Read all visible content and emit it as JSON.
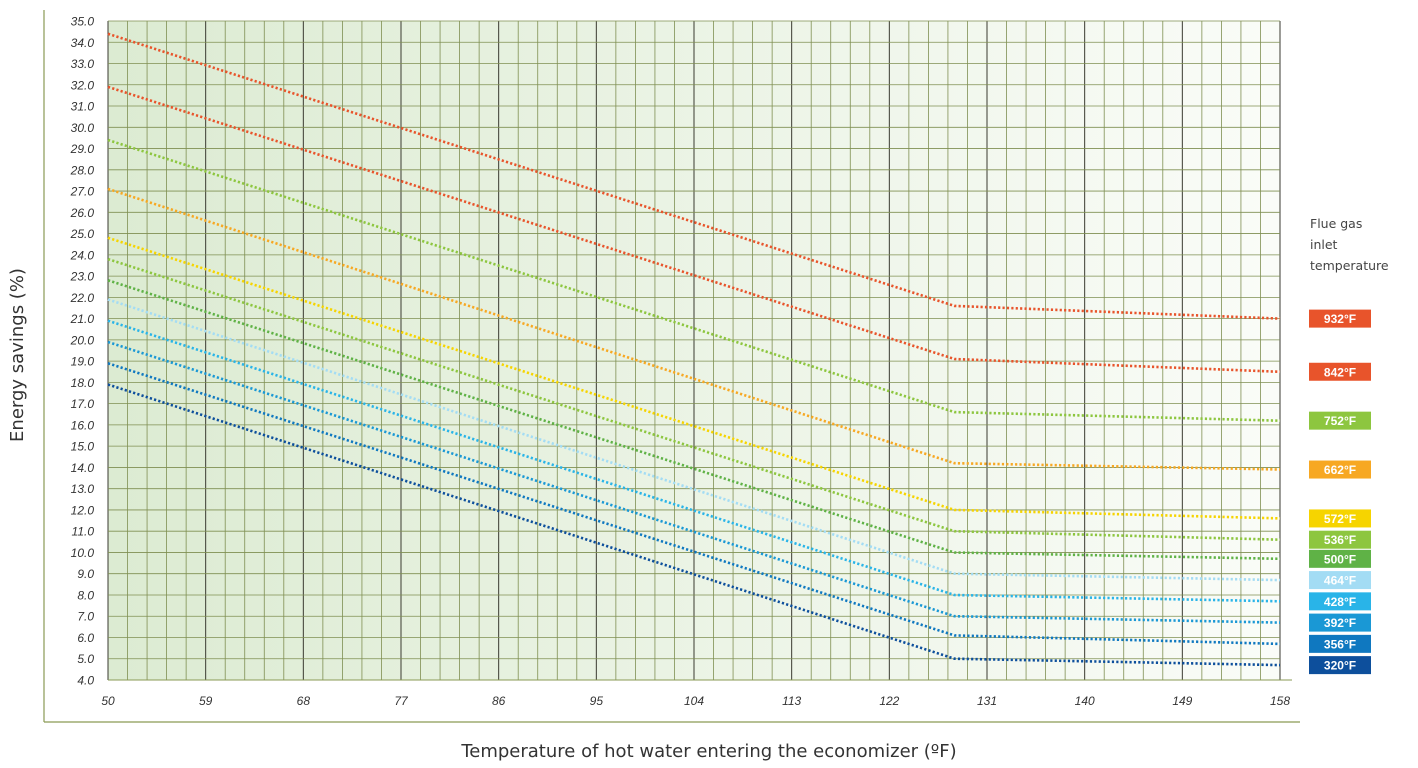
{
  "chart_data": {
    "type": "line",
    "xlabel": "Temperature of hot water entering the economizer (ºF)",
    "ylabel": "Energy savings (%)",
    "xlim": [
      50,
      158
    ],
    "ylim": [
      4.0,
      35.0
    ],
    "xticks": [
      "50",
      "59",
      "68",
      "77",
      "86",
      "95",
      "104",
      "113",
      "122",
      "131",
      "140",
      "149",
      "158"
    ],
    "yticks": [
      "35.0",
      "34.0",
      "33.0",
      "32.0",
      "31.0",
      "30.0",
      "29.0",
      "28.0",
      "27.0",
      "26.0",
      "25.0",
      "24.0",
      "23.0",
      "22.0",
      "21.0",
      "20.0",
      "19.0",
      "18.0",
      "17.0",
      "16.0",
      "15.0",
      "14.0",
      "13.0",
      "12.0",
      "11.0",
      "10.0",
      "9.0",
      "8.0",
      "7.0",
      "6.0",
      "5.0",
      "4.0"
    ],
    "grid": true,
    "legend_title": "Flue gas inlet temperature",
    "legend_title_lines": [
      "Flue gas",
      "inlet",
      "temperature"
    ],
    "legend_position": "right",
    "series": [
      {
        "name": "932°F",
        "color": "#e8542b",
        "x": [
          50,
          128,
          158
        ],
        "values": [
          34.4,
          21.6,
          21.0
        ]
      },
      {
        "name": "842°F",
        "color": "#e8542b",
        "x": [
          50,
          128,
          158
        ],
        "values": [
          31.9,
          19.1,
          18.5
        ]
      },
      {
        "name": "752°F",
        "color": "#8dc63f",
        "x": [
          50,
          128,
          158
        ],
        "values": [
          29.4,
          16.6,
          16.2
        ]
      },
      {
        "name": "662°F",
        "color": "#f7a823",
        "x": [
          50,
          128,
          158
        ],
        "values": [
          27.1,
          14.2,
          13.9
        ]
      },
      {
        "name": "572°F",
        "color": "#f6d400",
        "x": [
          50,
          128,
          158
        ],
        "values": [
          24.8,
          12.0,
          11.6
        ]
      },
      {
        "name": "536°F",
        "color": "#8dc63f",
        "x": [
          50,
          128,
          158
        ],
        "values": [
          23.8,
          11.0,
          10.6
        ]
      },
      {
        "name": "500°F",
        "color": "#5fb246",
        "x": [
          50,
          128,
          158
        ],
        "values": [
          22.8,
          10.0,
          9.7
        ]
      },
      {
        "name": "464°F",
        "color": "#a3dcf4",
        "x": [
          50,
          128,
          158
        ],
        "values": [
          21.9,
          9.0,
          8.7
        ]
      },
      {
        "name": "428°F",
        "color": "#29b4e8",
        "x": [
          50,
          128,
          158
        ],
        "values": [
          20.9,
          8.0,
          7.7
        ]
      },
      {
        "name": "392°F",
        "color": "#1a98d5",
        "x": [
          50,
          128,
          158
        ],
        "values": [
          19.9,
          7.0,
          6.7
        ]
      },
      {
        "name": "356°F",
        "color": "#0f78c0",
        "x": [
          50,
          128,
          158
        ],
        "values": [
          18.9,
          6.1,
          5.7
        ]
      },
      {
        "name": "320°F",
        "color": "#0d4f9c",
        "x": [
          50,
          128,
          158
        ],
        "values": [
          17.9,
          5.0,
          4.7
        ]
      }
    ]
  },
  "colors": {
    "plot_background_left": "#dcebd2",
    "plot_background_right": "#fafcf8",
    "grid_minor": "#7f8f52",
    "grid_major": "#3a3a30",
    "axis_line": "#8a9a55"
  }
}
